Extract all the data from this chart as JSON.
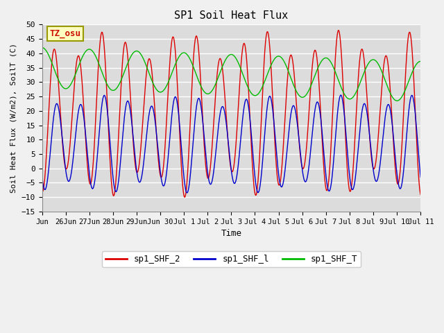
{
  "title": "SP1 Soil Heat Flux",
  "xlabel": "Time",
  "ylabel": "Soil Heat Flux (W/m2), SoilT (C)",
  "ylim": [
    -15,
    50
  ],
  "yticks": [
    -15,
    -10,
    -5,
    0,
    5,
    10,
    15,
    20,
    25,
    30,
    35,
    40,
    45,
    50
  ],
  "color_red": "#dd0000",
  "color_blue": "#0000cc",
  "color_green": "#00bb00",
  "legend_labels": [
    "sp1_SHF_2",
    "sp1_SHF_l",
    "sp1_SHF_T"
  ],
  "tz_label": "TZ_osu",
  "fig_bg": "#f0f0f0",
  "plot_bg": "#dcdcdc",
  "tick_labels": [
    "Jun",
    "26Jun",
    "27Jun",
    "28Jun",
    "29Jun",
    "Jun 30",
    "Jul 1",
    "Jul 2",
    "Jul 3",
    "Jul 4",
    "Jul 5",
    "Jul 6",
    "Jul 7",
    "Jul 8",
    "Jul 9",
    "Jul 10",
    "Jul 11"
  ],
  "tick_positions": [
    0,
    1,
    2,
    3,
    4,
    5,
    6,
    7,
    8,
    9,
    10,
    11,
    12,
    13,
    14,
    15,
    16
  ]
}
